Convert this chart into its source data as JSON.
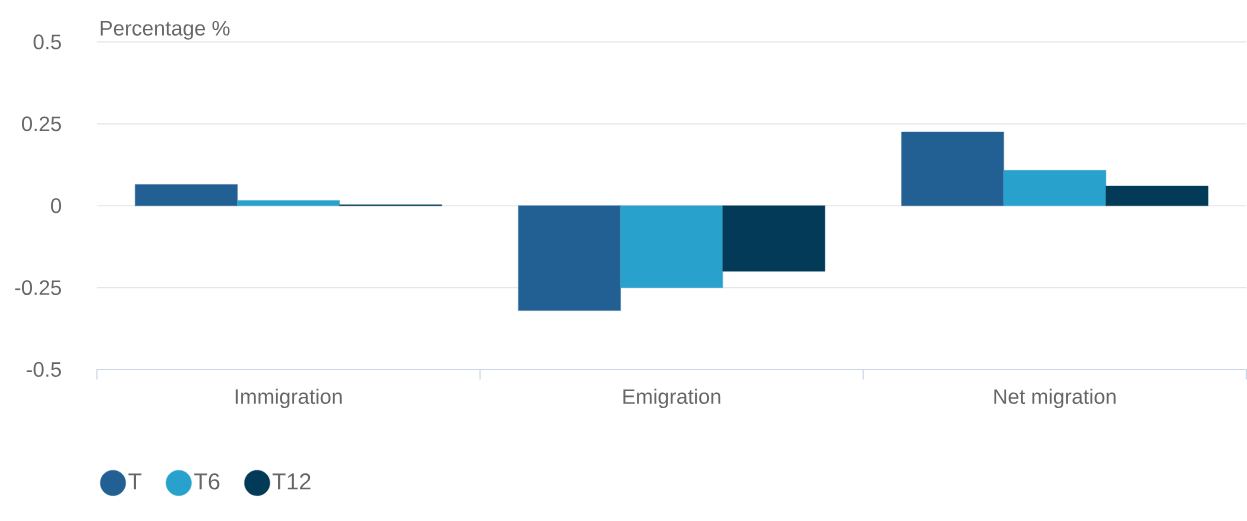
{
  "chart_data": {
    "type": "bar",
    "ylabel": "Percentage %",
    "categories": [
      "Immigration",
      "Emigration",
      "Net migration"
    ],
    "series": [
      {
        "name": "T",
        "color": "#226093",
        "values": [
          0.065,
          -0.32,
          0.225
        ]
      },
      {
        "name": "T6",
        "color": "#28a1cc",
        "values": [
          0.016,
          -0.25,
          0.108
        ]
      },
      {
        "name": "T12",
        "color": "#033a57",
        "values": [
          0.003,
          -0.2,
          0.06
        ]
      }
    ],
    "ylim": [
      -0.5,
      0.5
    ],
    "yticks": [
      -0.5,
      -0.25,
      0,
      0.25,
      0.5
    ],
    "grid": "y",
    "legend": "bottom left"
  }
}
